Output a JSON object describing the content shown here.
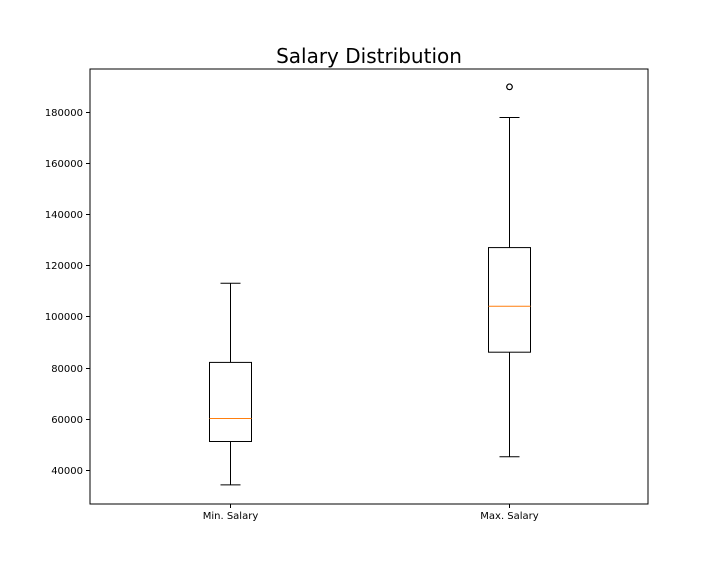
{
  "chart_data": {
    "type": "box",
    "title": "Salary Distribution",
    "xlabel": "",
    "ylabel": "",
    "categories": [
      "Min. Salary",
      "Max. Salary"
    ],
    "ylim": [
      26500,
      197000
    ],
    "yticks": [
      40000,
      60000,
      80000,
      100000,
      120000,
      140000,
      160000,
      180000
    ],
    "ytick_labels": [
      "40000",
      "60000",
      "80000",
      "100000",
      "120000",
      "140000",
      "160000",
      "180000"
    ],
    "grid": false,
    "boxes": [
      {
        "label": "Min. Salary",
        "whisker_low": 34000,
        "q1": 51000,
        "median": 60000,
        "q3": 82000,
        "whisker_high": 113000,
        "outliers": []
      },
      {
        "label": "Max. Salary",
        "whisker_low": 45000,
        "q1": 86000,
        "median": 104000,
        "q3": 127000,
        "whisker_high": 178000,
        "outliers": [
          190000,
          190000
        ]
      }
    ],
    "colors": {
      "box": "#000000",
      "whisker": "#000000",
      "median": "#ff7f0e",
      "outlier": "#000000",
      "axes": "#000000"
    }
  }
}
